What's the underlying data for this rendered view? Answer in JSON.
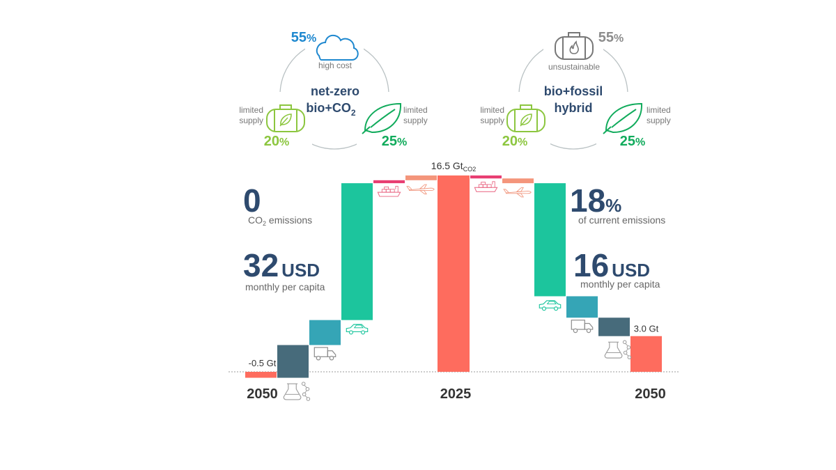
{
  "scenarios": {
    "left": {
      "title_line1": "net-zero",
      "title_line2": "bio+CO",
      "title_sub": "2",
      "top_pct_num": "55",
      "top_pct_sign": "%",
      "top_note": "high cost",
      "top_icon": "cloud-icon",
      "left_note_1": "limited",
      "left_note_2": "supply",
      "left_pct_num": "20",
      "left_pct_sign": "%",
      "right_note_1": "limited",
      "right_note_2": "supply",
      "right_pct_num": "25",
      "right_pct_sign": "%"
    },
    "right": {
      "title_line1": "bio+fossil",
      "title_line2": "hybrid",
      "top_pct_num": "55",
      "top_pct_sign": "%",
      "top_note": "unsustainable",
      "top_icon": "gas-tank-icon",
      "left_note_1": "limited",
      "left_note_2": "supply",
      "left_pct_num": "20",
      "left_pct_sign": "%",
      "right_note_1": "limited",
      "right_note_2": "supply",
      "right_pct_num": "25",
      "right_pct_sign": "%"
    }
  },
  "stats": {
    "left_big": "0",
    "left_small_pre": "CO",
    "left_small_sub": "2",
    "left_small_post": " emissions",
    "left_cost_num": "32",
    "left_cost_unit": "USD",
    "left_cost_note": "monthly per capita",
    "right_big": "18",
    "right_big_sign": "%",
    "right_small": "of current emissions",
    "right_cost_num": "16",
    "right_cost_unit": "USD",
    "right_cost_note": "monthly per capita"
  },
  "chart_data": {
    "type": "waterfall",
    "title": "",
    "unit": "Gt CO2",
    "start_label": "2025",
    "start_value": 16.5,
    "start_value_text": "16.5 Gt",
    "start_value_sub": "CO2",
    "left_end_label": "2050",
    "left_end_value": -0.5,
    "left_end_value_text": "-0.5 Gt",
    "right_end_label": "2050",
    "right_end_value": 3.0,
    "right_end_value_text": "3.0 Gt",
    "left_steps": [
      {
        "sector": "aviation",
        "icon": "airplane-icon",
        "value": -0.4
      },
      {
        "sector": "shipping",
        "icon": "ship-icon",
        "value": -0.25
      },
      {
        "sector": "road passenger",
        "icon": "car-icon",
        "value": -11.5
      },
      {
        "sector": "road freight",
        "icon": "truck-icon",
        "value": -2.1
      },
      {
        "sector": "chemicals",
        "icon": "flask-icon",
        "value": -2.75
      }
    ],
    "right_steps": [
      {
        "sector": "shipping",
        "icon": "ship-icon",
        "value": -0.25
      },
      {
        "sector": "aviation",
        "icon": "airplane-icon",
        "value": -0.4
      },
      {
        "sector": "road passenger",
        "icon": "car-icon",
        "value": -9.5
      },
      {
        "sector": "road freight",
        "icon": "truck-icon",
        "value": -1.8
      },
      {
        "sector": "chemicals",
        "icon": "flask-icon",
        "value": -1.55
      }
    ],
    "colors": {
      "total": "#fe6c5e",
      "aviation": "#f4957b",
      "shipping": "#e83e72",
      "road passenger": "#1cc59d",
      "road freight": "#35a5b6",
      "chemicals": "#476b7b",
      "baseline": "#999999",
      "icon": "#a9a9a9"
    }
  },
  "palette": {
    "navy": "#2e4a6e",
    "blue": "#1e88cf",
    "lime": "#8cc63f",
    "green": "#11ab5c",
    "grey": "#8c8c8c",
    "circle": "#b9c1c3"
  }
}
